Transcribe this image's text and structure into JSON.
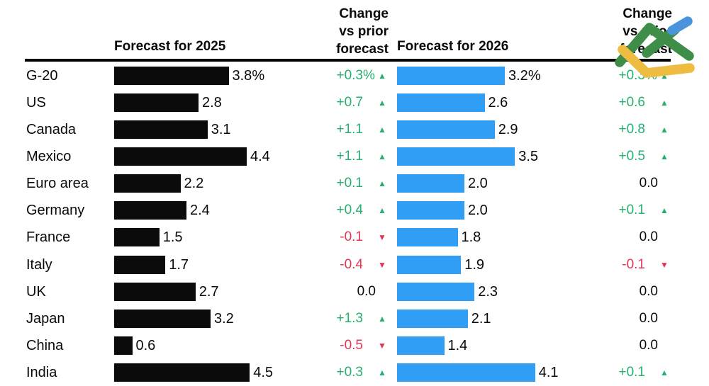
{
  "header": {
    "col_2025": "Forecast for 2025",
    "col_2026": "Forecast for 2026",
    "change_lines": [
      "Change",
      "vs prior",
      "forecast"
    ]
  },
  "icons": {
    "up_arrow": "▲",
    "down_arrow": "▼",
    "logo": "litefinance-check-logo"
  },
  "colors": {
    "bar_2025": "#0b0b0b",
    "bar_2026": "#2f9ef4",
    "up": "#26b06e",
    "down": "#e53554",
    "logo_green": "#3e8e49",
    "logo_yellow": "#eebc40",
    "logo_blue": "#4a93dd"
  },
  "rows": [
    {
      "label": "G-20",
      "f2025": 3.8,
      "f2025_label": "3.8",
      "f2025_suffix": "%",
      "chg2025": "+0.3",
      "chg2025_suffix": "%",
      "chg2025_dir": "up",
      "f2026": 3.2,
      "f2026_label": "3.2",
      "f2026_suffix": "%",
      "chg2026": "+0.3",
      "chg2026_suffix": "%",
      "chg2026_dir": "up"
    },
    {
      "label": "US",
      "f2025": 2.8,
      "f2025_label": "2.8",
      "f2025_suffix": "",
      "chg2025": "+0.7",
      "chg2025_suffix": "",
      "chg2025_dir": "up",
      "f2026": 2.6,
      "f2026_label": "2.6",
      "f2026_suffix": "",
      "chg2026": "+0.6",
      "chg2026_suffix": "",
      "chg2026_dir": "up"
    },
    {
      "label": "Canada",
      "f2025": 3.1,
      "f2025_label": "3.1",
      "f2025_suffix": "",
      "chg2025": "+1.1",
      "chg2025_suffix": "",
      "chg2025_dir": "up",
      "f2026": 2.9,
      "f2026_label": "2.9",
      "f2026_suffix": "",
      "chg2026": "+0.8",
      "chg2026_suffix": "",
      "chg2026_dir": "up"
    },
    {
      "label": "Mexico",
      "f2025": 4.4,
      "f2025_label": "4.4",
      "f2025_suffix": "",
      "chg2025": "+1.1",
      "chg2025_suffix": "",
      "chg2025_dir": "up",
      "f2026": 3.5,
      "f2026_label": "3.5",
      "f2026_suffix": "",
      "chg2026": "+0.5",
      "chg2026_suffix": "",
      "chg2026_dir": "up"
    },
    {
      "label": "Euro area",
      "f2025": 2.2,
      "f2025_label": "2.2",
      "f2025_suffix": "",
      "chg2025": "+0.1",
      "chg2025_suffix": "",
      "chg2025_dir": "up",
      "f2026": 2.0,
      "f2026_label": "2.0",
      "f2026_suffix": "",
      "chg2026": "0.0",
      "chg2026_suffix": "",
      "chg2026_dir": "none"
    },
    {
      "label": "Germany",
      "f2025": 2.4,
      "f2025_label": "2.4",
      "f2025_suffix": "",
      "chg2025": "+0.4",
      "chg2025_suffix": "",
      "chg2025_dir": "up",
      "f2026": 2.0,
      "f2026_label": "2.0",
      "f2026_suffix": "",
      "chg2026": "+0.1",
      "chg2026_suffix": "",
      "chg2026_dir": "up"
    },
    {
      "label": "France",
      "f2025": 1.5,
      "f2025_label": "1.5",
      "f2025_suffix": "",
      "chg2025": "-0.1",
      "chg2025_suffix": "",
      "chg2025_dir": "down",
      "f2026": 1.8,
      "f2026_label": "1.8",
      "f2026_suffix": "",
      "chg2026": "0.0",
      "chg2026_suffix": "",
      "chg2026_dir": "none"
    },
    {
      "label": "Italy",
      "f2025": 1.7,
      "f2025_label": "1.7",
      "f2025_suffix": "",
      "chg2025": "-0.4",
      "chg2025_suffix": "",
      "chg2025_dir": "down",
      "f2026": 1.9,
      "f2026_label": "1.9",
      "f2026_suffix": "",
      "chg2026": "-0.1",
      "chg2026_suffix": "",
      "chg2026_dir": "down"
    },
    {
      "label": "UK",
      "f2025": 2.7,
      "f2025_label": "2.7",
      "f2025_suffix": "",
      "chg2025": "0.0",
      "chg2025_suffix": "",
      "chg2025_dir": "none",
      "f2026": 2.3,
      "f2026_label": "2.3",
      "f2026_suffix": "",
      "chg2026": "0.0",
      "chg2026_suffix": "",
      "chg2026_dir": "none"
    },
    {
      "label": "Japan",
      "f2025": 3.2,
      "f2025_label": "3.2",
      "f2025_suffix": "",
      "chg2025": "+1.3",
      "chg2025_suffix": "",
      "chg2025_dir": "up",
      "f2026": 2.1,
      "f2026_label": "2.1",
      "f2026_suffix": "",
      "chg2026": "0.0",
      "chg2026_suffix": "",
      "chg2026_dir": "none"
    },
    {
      "label": "China",
      "f2025": 0.6,
      "f2025_label": "0.6",
      "f2025_suffix": "",
      "chg2025": "-0.5",
      "chg2025_suffix": "",
      "chg2025_dir": "down",
      "f2026": 1.4,
      "f2026_label": "1.4",
      "f2026_suffix": "",
      "chg2026": "0.0",
      "chg2026_suffix": "",
      "chg2026_dir": "none"
    },
    {
      "label": "India",
      "f2025": 4.5,
      "f2025_label": "4.5",
      "f2025_suffix": "",
      "chg2025": "+0.3",
      "chg2025_suffix": "",
      "chg2025_dir": "up",
      "f2026": 4.1,
      "f2026_label": "4.1",
      "f2026_suffix": "",
      "chg2026": "+0.1",
      "chg2026_suffix": "",
      "chg2026_dir": "up"
    }
  ],
  "chart_data": {
    "type": "bar",
    "orientation": "horizontal",
    "categories": [
      "G-20",
      "US",
      "Canada",
      "Mexico",
      "Euro area",
      "Germany",
      "France",
      "Italy",
      "UK",
      "Japan",
      "China",
      "India"
    ],
    "series": [
      {
        "name": "Forecast for 2025",
        "color": "#0b0b0b",
        "values": [
          3.8,
          2.8,
          3.1,
          4.4,
          2.2,
          2.4,
          1.5,
          1.7,
          2.7,
          3.2,
          0.6,
          4.5
        ]
      },
      {
        "name": "Change vs prior forecast (2025)",
        "values": [
          0.3,
          0.7,
          1.1,
          1.1,
          0.1,
          0.4,
          -0.1,
          -0.4,
          0.0,
          1.3,
          -0.5,
          0.3
        ]
      },
      {
        "name": "Forecast for 2026",
        "color": "#2f9ef4",
        "values": [
          3.2,
          2.6,
          2.9,
          3.5,
          2.0,
          2.0,
          1.8,
          1.9,
          2.3,
          2.1,
          1.4,
          4.1
        ]
      },
      {
        "name": "Change vs prior forecast (2026)",
        "values": [
          0.3,
          0.6,
          0.8,
          0.5,
          0.0,
          0.1,
          0.0,
          -0.1,
          0.0,
          0.0,
          0.0,
          0.1
        ]
      }
    ],
    "unit": "%",
    "value_labels": true,
    "xlim": [
      0,
      4.5
    ],
    "grid": false,
    "legend_position": "column-headers"
  }
}
